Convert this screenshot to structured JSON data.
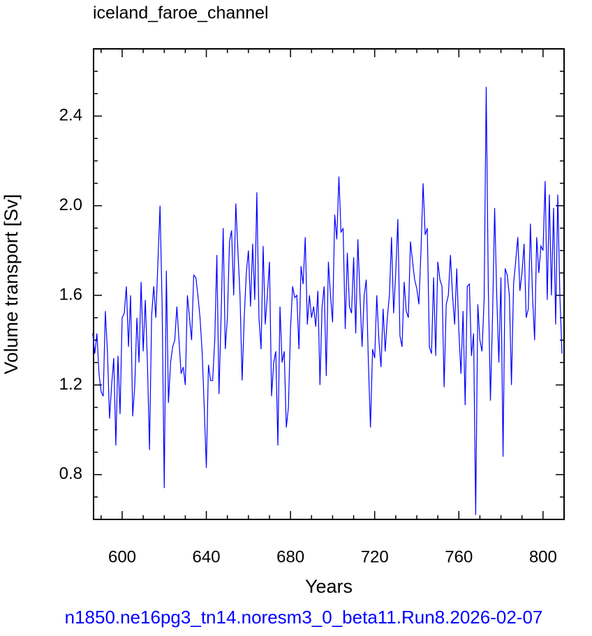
{
  "chart_data": {
    "type": "line",
    "title": "iceland_faroe_channel",
    "xlabel": "Years",
    "ylabel": "Volume transport [Sv]",
    "footer": "n1850.ne16pg3_tn14.noresm3_0_beta11.Run8.2026-02-07",
    "xlim": [
      586.4,
      810
    ],
    "ylim": [
      0.6,
      2.7
    ],
    "xticks": [
      600,
      640,
      680,
      720,
      760,
      800
    ],
    "yticks": [
      0.8,
      1.2,
      1.6,
      {
        "value": 2,
        "label": "2.0"
      },
      2.4
    ],
    "xminorticks": [
      590,
      610,
      620,
      630,
      650,
      660,
      670,
      690,
      700,
      710,
      730,
      740,
      750,
      770,
      780,
      790
    ],
    "yminorticks": [
      0.7,
      0.9,
      1.0,
      1.1,
      1.3,
      1.4,
      1.5,
      1.7,
      1.8,
      1.9,
      2.1,
      2.2,
      2.3,
      2.5,
      2.6
    ],
    "x": [
      586,
      587,
      588,
      589,
      590,
      591,
      592,
      593,
      594,
      595,
      596,
      597,
      598,
      599,
      600,
      601,
      602,
      603,
      604,
      605,
      606,
      607,
      608,
      609,
      610,
      611,
      612,
      613,
      614,
      615,
      616,
      617,
      618,
      619,
      620,
      621,
      622,
      623,
      624,
      625,
      626,
      627,
      628,
      629,
      630,
      631,
      632,
      633,
      634,
      635,
      636,
      637,
      638,
      639,
      640,
      641,
      642,
      643,
      644,
      645,
      646,
      647,
      648,
      649,
      650,
      651,
      652,
      653,
      654,
      655,
      656,
      657,
      658,
      659,
      660,
      661,
      662,
      663,
      664,
      665,
      666,
      667,
      668,
      669,
      670,
      671,
      672,
      673,
      674,
      675,
      676,
      677,
      678,
      679,
      680,
      681,
      682,
      683,
      684,
      685,
      686,
      687,
      688,
      689,
      690,
      691,
      692,
      693,
      694,
      695,
      696,
      697,
      698,
      699,
      700,
      701,
      702,
      703,
      704,
      705,
      706,
      707,
      708,
      709,
      710,
      711,
      712,
      713,
      714,
      715,
      716,
      717,
      718,
      719,
      720,
      721,
      722,
      723,
      724,
      725,
      726,
      727,
      728,
      729,
      730,
      731,
      732,
      733,
      734,
      735,
      736,
      737,
      738,
      739,
      740,
      741,
      742,
      743,
      744,
      745,
      746,
      747,
      748,
      749,
      750,
      751,
      752,
      753,
      754,
      755,
      756,
      757,
      758,
      759,
      760,
      761,
      762,
      763,
      764,
      765,
      766,
      767,
      768,
      769,
      770,
      771,
      772,
      773,
      774,
      775,
      776,
      777,
      778,
      779,
      780,
      781,
      782,
      783,
      784,
      785,
      786,
      787,
      788,
      789,
      790,
      791,
      792,
      793,
      794,
      795,
      796,
      797,
      798,
      799,
      800,
      801,
      802,
      803,
      804,
      805,
      806,
      807,
      808,
      809
    ],
    "series": [
      {
        "color": "#0000ff",
        "values": [
          1.43,
          1.34,
          1.43,
          1.25,
          1.17,
          1.15,
          1.53,
          1.35,
          1.05,
          1.2,
          1.32,
          0.93,
          1.33,
          1.07,
          1.5,
          1.52,
          1.64,
          1.37,
          1.6,
          1.06,
          1.2,
          1.5,
          1.3,
          1.66,
          1.35,
          1.58,
          1.3,
          0.91,
          1.51,
          1.64,
          1.5,
          1.75,
          2.0,
          1.55,
          0.74,
          1.71,
          1.12,
          1.3,
          1.37,
          1.4,
          1.55,
          1.4,
          1.25,
          1.28,
          1.2,
          1.6,
          1.5,
          1.4,
          1.69,
          1.68,
          1.6,
          1.5,
          1.35,
          1.1,
          0.83,
          1.29,
          1.22,
          1.22,
          1.4,
          1.78,
          1.16,
          1.5,
          1.9,
          1.36,
          1.5,
          1.84,
          1.89,
          1.6,
          2.01,
          1.8,
          1.6,
          1.22,
          1.5,
          1.7,
          1.8,
          1.55,
          1.83,
          1.58,
          2.06,
          1.5,
          1.36,
          1.82,
          1.47,
          1.6,
          1.75,
          1.15,
          1.3,
          1.35,
          0.93,
          1.55,
          1.3,
          1.35,
          1.01,
          1.1,
          1.45,
          1.64,
          1.59,
          1.6,
          1.36,
          1.73,
          1.65,
          1.86,
          1.47,
          1.6,
          1.5,
          1.55,
          1.46,
          1.62,
          1.2,
          1.55,
          1.64,
          1.24,
          1.75,
          1.6,
          1.48,
          1.96,
          1.85,
          2.13,
          1.88,
          1.9,
          1.45,
          1.79,
          1.55,
          1.52,
          1.77,
          1.43,
          1.85,
          1.6,
          1.37,
          1.6,
          1.67,
          1.3,
          1.01,
          1.36,
          1.32,
          1.6,
          1.4,
          1.28,
          1.54,
          1.35,
          1.5,
          1.6,
          1.86,
          1.52,
          1.7,
          1.94,
          1.42,
          1.37,
          1.66,
          1.53,
          1.5,
          1.84,
          1.75,
          1.67,
          1.63,
          1.56,
          1.8,
          2.1,
          1.87,
          1.9,
          1.37,
          1.34,
          1.68,
          1.33,
          1.75,
          1.67,
          1.64,
          1.19,
          1.56,
          1.6,
          1.78,
          1.6,
          1.47,
          1.72,
          1.44,
          1.25,
          1.53,
          1.11,
          1.64,
          1.65,
          1.33,
          1.43,
          0.62,
          1.56,
          1.4,
          1.35,
          1.58,
          2.53,
          1.63,
          1.13,
          1.5,
          1.99,
          1.6,
          1.3,
          1.68,
          0.88,
          1.72,
          1.69,
          1.6,
          1.2,
          1.65,
          1.75,
          1.86,
          1.62,
          1.7,
          1.83,
          1.5,
          1.54,
          1.92,
          1.6,
          1.4,
          1.86,
          1.7,
          1.82,
          1.8,
          2.11,
          1.58,
          2.05,
          1.6,
          1.99,
          1.47,
          2.05,
          1.6,
          1.34
        ]
      }
    ]
  }
}
